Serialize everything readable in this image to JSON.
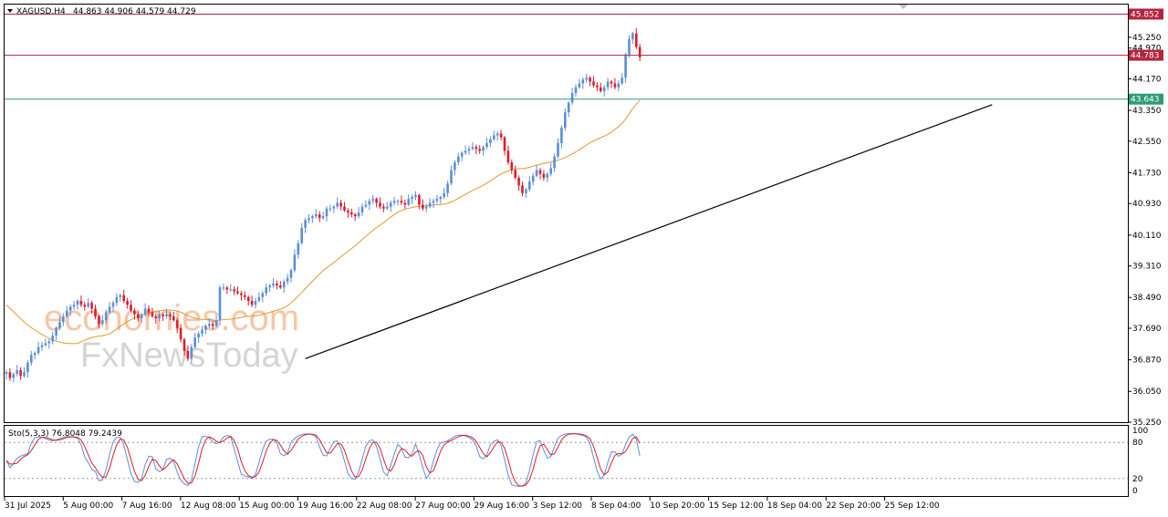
{
  "header": {
    "symbol": "XAGUSD,H4",
    "ohlc": "44.863 44.906 44.579 44.729"
  },
  "indicator": {
    "label": "Sto(5,3,3) 76.8048 79.2439",
    "levels": [
      100,
      80,
      20,
      0
    ],
    "level_labels": [
      "100",
      "80",
      "20",
      "0"
    ]
  },
  "watermark": {
    "line1": "economies.com",
    "line2": "FxNewsToday"
  },
  "colors": {
    "bull": "#5b8fd8",
    "bear": "#dd1c2c",
    "ma": "#e39a2b",
    "trend": "#000000",
    "resistance": "#b3243f",
    "price_line": "#b3243f",
    "support": "#2f9a7a",
    "stoch_main": "#5b8fd8",
    "stoch_signal": "#dd1c2c"
  },
  "chart_data": {
    "type": "candlestick",
    "instrument": "XAGUSD",
    "timeframe": "H4",
    "y_ticks": [
      45.25,
      44.97,
      44.17,
      43.35,
      42.55,
      41.73,
      40.93,
      40.11,
      39.31,
      38.49,
      37.69,
      36.87,
      36.05,
      35.25
    ],
    "y_tick_labels": [
      "45.250",
      "44.970",
      "44.170",
      "43.350",
      "42.550",
      "41.730",
      "40.930",
      "40.110",
      "39.310",
      "38.490",
      "37.690",
      "36.870",
      "36.050",
      "35.250"
    ],
    "ylim": [
      35.25,
      46.1
    ],
    "x_labels": [
      "31 Jul 2025",
      "5 Aug 00:00",
      "7 Aug 16:00",
      "12 Aug 08:00",
      "15 Aug 00:00",
      "19 Aug 16:00",
      "22 Aug 08:00",
      "27 Aug 00:00",
      "29 Aug 16:00",
      "3 Sep 12:00",
      "8 Sep 04:00",
      "10 Sep 20:00",
      "15 Sep 12:00",
      "18 Sep 04:00",
      "22 Sep 20:00",
      "25 Sep 12:00"
    ],
    "levels": [
      {
        "name": "resistance",
        "value": 45.852,
        "label": "45.852"
      },
      {
        "name": "current-price",
        "value": 44.783,
        "label": "44.783"
      },
      {
        "name": "support",
        "value": 43.643,
        "label": "43.643"
      }
    ],
    "trendline": {
      "from": {
        "bar": 84,
        "price": 36.9
      },
      "to": {
        "bar": 277,
        "price": 43.5
      }
    },
    "closes": [
      36.55,
      36.4,
      36.5,
      36.6,
      36.45,
      36.55,
      36.8,
      37.0,
      37.05,
      37.2,
      37.25,
      37.3,
      37.35,
      37.5,
      37.7,
      37.85,
      38.0,
      38.15,
      38.25,
      38.3,
      38.4,
      38.3,
      38.25,
      38.35,
      38.2,
      38.0,
      37.8,
      37.9,
      38.1,
      38.25,
      38.35,
      38.5,
      38.55,
      38.4,
      38.3,
      38.15,
      38.05,
      37.95,
      38.05,
      38.2,
      38.1,
      38.0,
      37.95,
      38.05,
      38.0,
      38.05,
      38.0,
      37.9,
      37.7,
      37.4,
      37.1,
      36.9,
      37.2,
      37.45,
      37.55,
      37.65,
      37.75,
      37.8,
      37.75,
      37.9,
      38.75,
      38.75,
      38.7,
      38.7,
      38.65,
      38.6,
      38.55,
      38.5,
      38.4,
      38.3,
      38.4,
      38.5,
      38.6,
      38.75,
      38.8,
      38.85,
      38.8,
      38.75,
      38.9,
      39.0,
      39.2,
      39.6,
      39.9,
      40.3,
      40.5,
      40.55,
      40.6,
      40.65,
      40.55,
      40.6,
      40.8,
      40.8,
      40.85,
      40.95,
      40.85,
      40.75,
      40.7,
      40.65,
      40.6,
      40.7,
      40.85,
      40.9,
      41.0,
      41.05,
      40.95,
      40.85,
      40.8,
      40.85,
      40.95,
      41.0,
      41.0,
      40.95,
      40.9,
      41.05,
      41.1,
      41.15,
      40.9,
      40.8,
      40.85,
      40.95,
      41.0,
      41.05,
      41.1,
      41.2,
      41.45,
      41.8,
      42.0,
      42.15,
      42.25,
      42.3,
      42.35,
      42.4,
      42.35,
      42.3,
      42.4,
      42.5,
      42.6,
      42.7,
      42.75,
      42.65,
      42.3,
      42.0,
      41.8,
      41.6,
      41.4,
      41.2,
      41.3,
      41.5,
      41.65,
      41.8,
      41.7,
      41.6,
      41.7,
      41.85,
      42.15,
      42.5,
      42.9,
      43.3,
      43.55,
      43.8,
      43.95,
      44.05,
      44.15,
      44.2,
      44.1,
      44.0,
      43.95,
      43.85,
      43.95,
      44.1,
      44.05,
      43.95,
      44.05,
      44.2,
      44.8,
      45.2,
      45.35,
      45.0,
      44.73
    ]
  }
}
